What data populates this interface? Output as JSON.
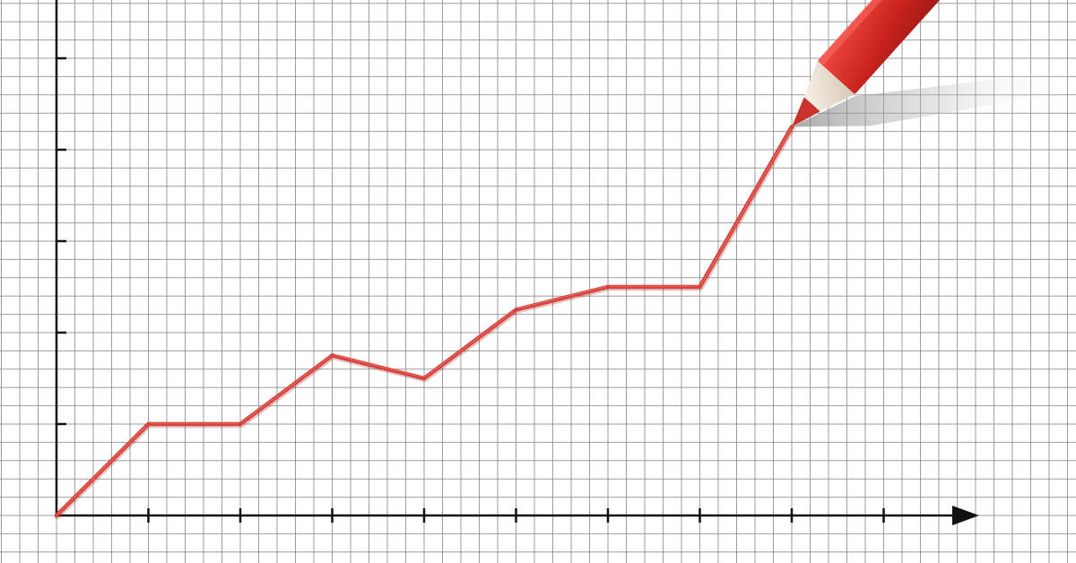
{
  "chart_data": {
    "type": "line",
    "title": "",
    "xlabel": "",
    "ylabel": "",
    "x": [
      0,
      1,
      2,
      3,
      4,
      5,
      6,
      7,
      8
    ],
    "series": [
      {
        "values": [
          0,
          1,
          1,
          1.75,
          1.5,
          2.25,
          2.5,
          2.5,
          4.25
        ]
      }
    ],
    "xlim": [
      0,
      10
    ],
    "ylim": [
      0,
      5
    ],
    "x_ticks": [
      1,
      2,
      3,
      4,
      5,
      6,
      7,
      8,
      9
    ],
    "y_ticks": [
      1,
      2,
      3,
      4,
      5
    ],
    "grid": true,
    "line_color": "#d6423c",
    "axis_color": "#111111",
    "grid_color": "#8d8d8d",
    "pencil": {
      "body_color": "#d62b25",
      "tip_color": "#c8342d",
      "wood_color": "#f2e7db"
    }
  }
}
